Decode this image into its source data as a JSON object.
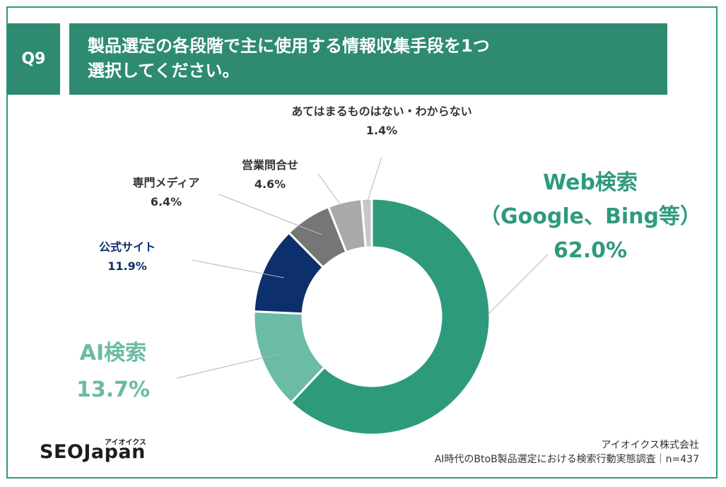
{
  "question": {
    "badge": "Q9",
    "line1": "製品選定の各段階で主に使用する情報収集手段を1つ",
    "line2": "選択してください。"
  },
  "chart_data": {
    "type": "pie",
    "donut": true,
    "categories": [
      "Web検索（Google、Bing等）",
      "AI検索",
      "公式サイト",
      "専門メディア",
      "営業問合せ",
      "あてはまるものはない・わからない"
    ],
    "values": [
      62.0,
      13.7,
      11.9,
      6.4,
      4.6,
      1.4
    ],
    "colors": [
      "#2e9a7c",
      "#6bbba6",
      "#0d2f6b",
      "#767676",
      "#a9a9a9",
      "#c7c7c7"
    ],
    "labels": [
      {
        "lines": [
          "Web検索",
          "（Google、Bing等）"
        ],
        "pct": "62.0%",
        "color": "#2e9a7c"
      },
      {
        "lines": [
          "AI検索"
        ],
        "pct": "13.7%",
        "color": "#6bbba6"
      },
      {
        "lines": [
          "公式サイト"
        ],
        "pct": "11.9%",
        "color": "#0d2f6b"
      },
      {
        "lines": [
          "専門メディア"
        ],
        "pct": "6.4%",
        "color": "#333333"
      },
      {
        "lines": [
          "営業問合せ"
        ],
        "pct": "4.6%",
        "color": "#333333"
      },
      {
        "lines": [
          "あてはまるものはない・わからない"
        ],
        "pct": "1.4%",
        "color": "#333333"
      }
    ]
  },
  "footer": {
    "logo": "SEOJapan",
    "logo_ruby": "アイオイクス",
    "company": "アイオイクス株式会社",
    "survey": "AI時代のBtoB製品選定における検索行動実態調査｜n=437"
  }
}
